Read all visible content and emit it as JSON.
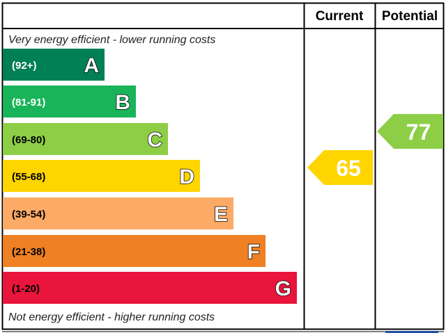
{
  "chart_data": {
    "type": "bar",
    "headers": {
      "current": "Current",
      "potential": "Potential"
    },
    "top_note": "Very energy efficient - lower running costs",
    "bottom_note": "Not energy efficient - higher running costs",
    "bands": [
      {
        "letter": "A",
        "range": "(92+)",
        "color": "#008054",
        "text_color": "#ffffff"
      },
      {
        "letter": "B",
        "range": "(81-91)",
        "color": "#19b459",
        "text_color": "#ffffff"
      },
      {
        "letter": "C",
        "range": "(69-80)",
        "color": "#8dce46",
        "text_color": "#000000"
      },
      {
        "letter": "D",
        "range": "(55-68)",
        "color": "#ffd500",
        "text_color": "#000000"
      },
      {
        "letter": "E",
        "range": "(39-54)",
        "color": "#fcaa65",
        "text_color": "#000000"
      },
      {
        "letter": "F",
        "range": "(21-38)",
        "color": "#ef8023",
        "text_color": "#000000"
      },
      {
        "letter": "G",
        "range": "(1-20)",
        "color": "#e9153b",
        "text_color": "#000000"
      }
    ],
    "current": {
      "value": 65,
      "band": "D",
      "color": "#ffd500"
    },
    "potential": {
      "value": 77,
      "band": "C",
      "color": "#8dce46"
    }
  }
}
